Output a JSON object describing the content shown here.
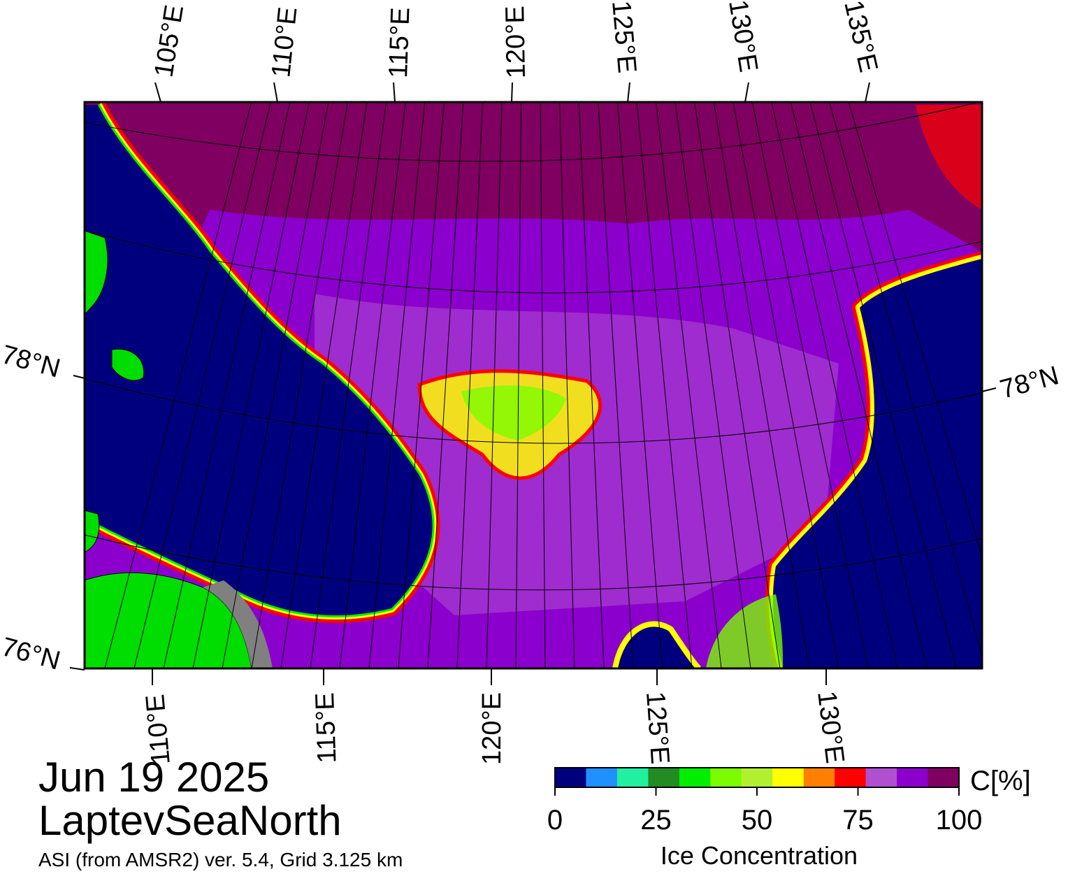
{
  "map": {
    "date": "Jun 19 2025",
    "region": "LaptevSeaNorth",
    "source": "ASI (from AMSR2) ver. 5.4,  Grid 3.125 km",
    "top_lon_labels": [
      "105°E",
      "110°E",
      "115°E",
      "120°E",
      "125°E",
      "130°E",
      "135°E"
    ],
    "bottom_lon_labels": [
      "110°E",
      "115°E",
      "120°E",
      "125°E",
      "130°E"
    ],
    "lat_labels": [
      {
        "text": "78°N",
        "side": "left"
      },
      {
        "text": "78°N",
        "side": "right"
      },
      {
        "text": "76°N",
        "side": "left"
      }
    ],
    "colors": {
      "open_water": "#00007f",
      "ice_full": "#7f0060",
      "ice_high": "#8b00cc",
      "ice_mid": "#b050d0",
      "land": "#00dd00",
      "land_mask": "#808080"
    }
  },
  "colorbar": {
    "title": "Ice Concentration",
    "unit_label": "C[%]",
    "ticks": [
      "0",
      "25",
      "50",
      "75",
      "100"
    ],
    "range": [
      0,
      100
    ],
    "colors": [
      "#00007f",
      "#1e90ff",
      "#20f0a0",
      "#228b22",
      "#00ee00",
      "#7cfc00",
      "#b0f030",
      "#ffff00",
      "#ff8000",
      "#ff0000",
      "#b050d0",
      "#8b00cc",
      "#7f0060"
    ]
  }
}
